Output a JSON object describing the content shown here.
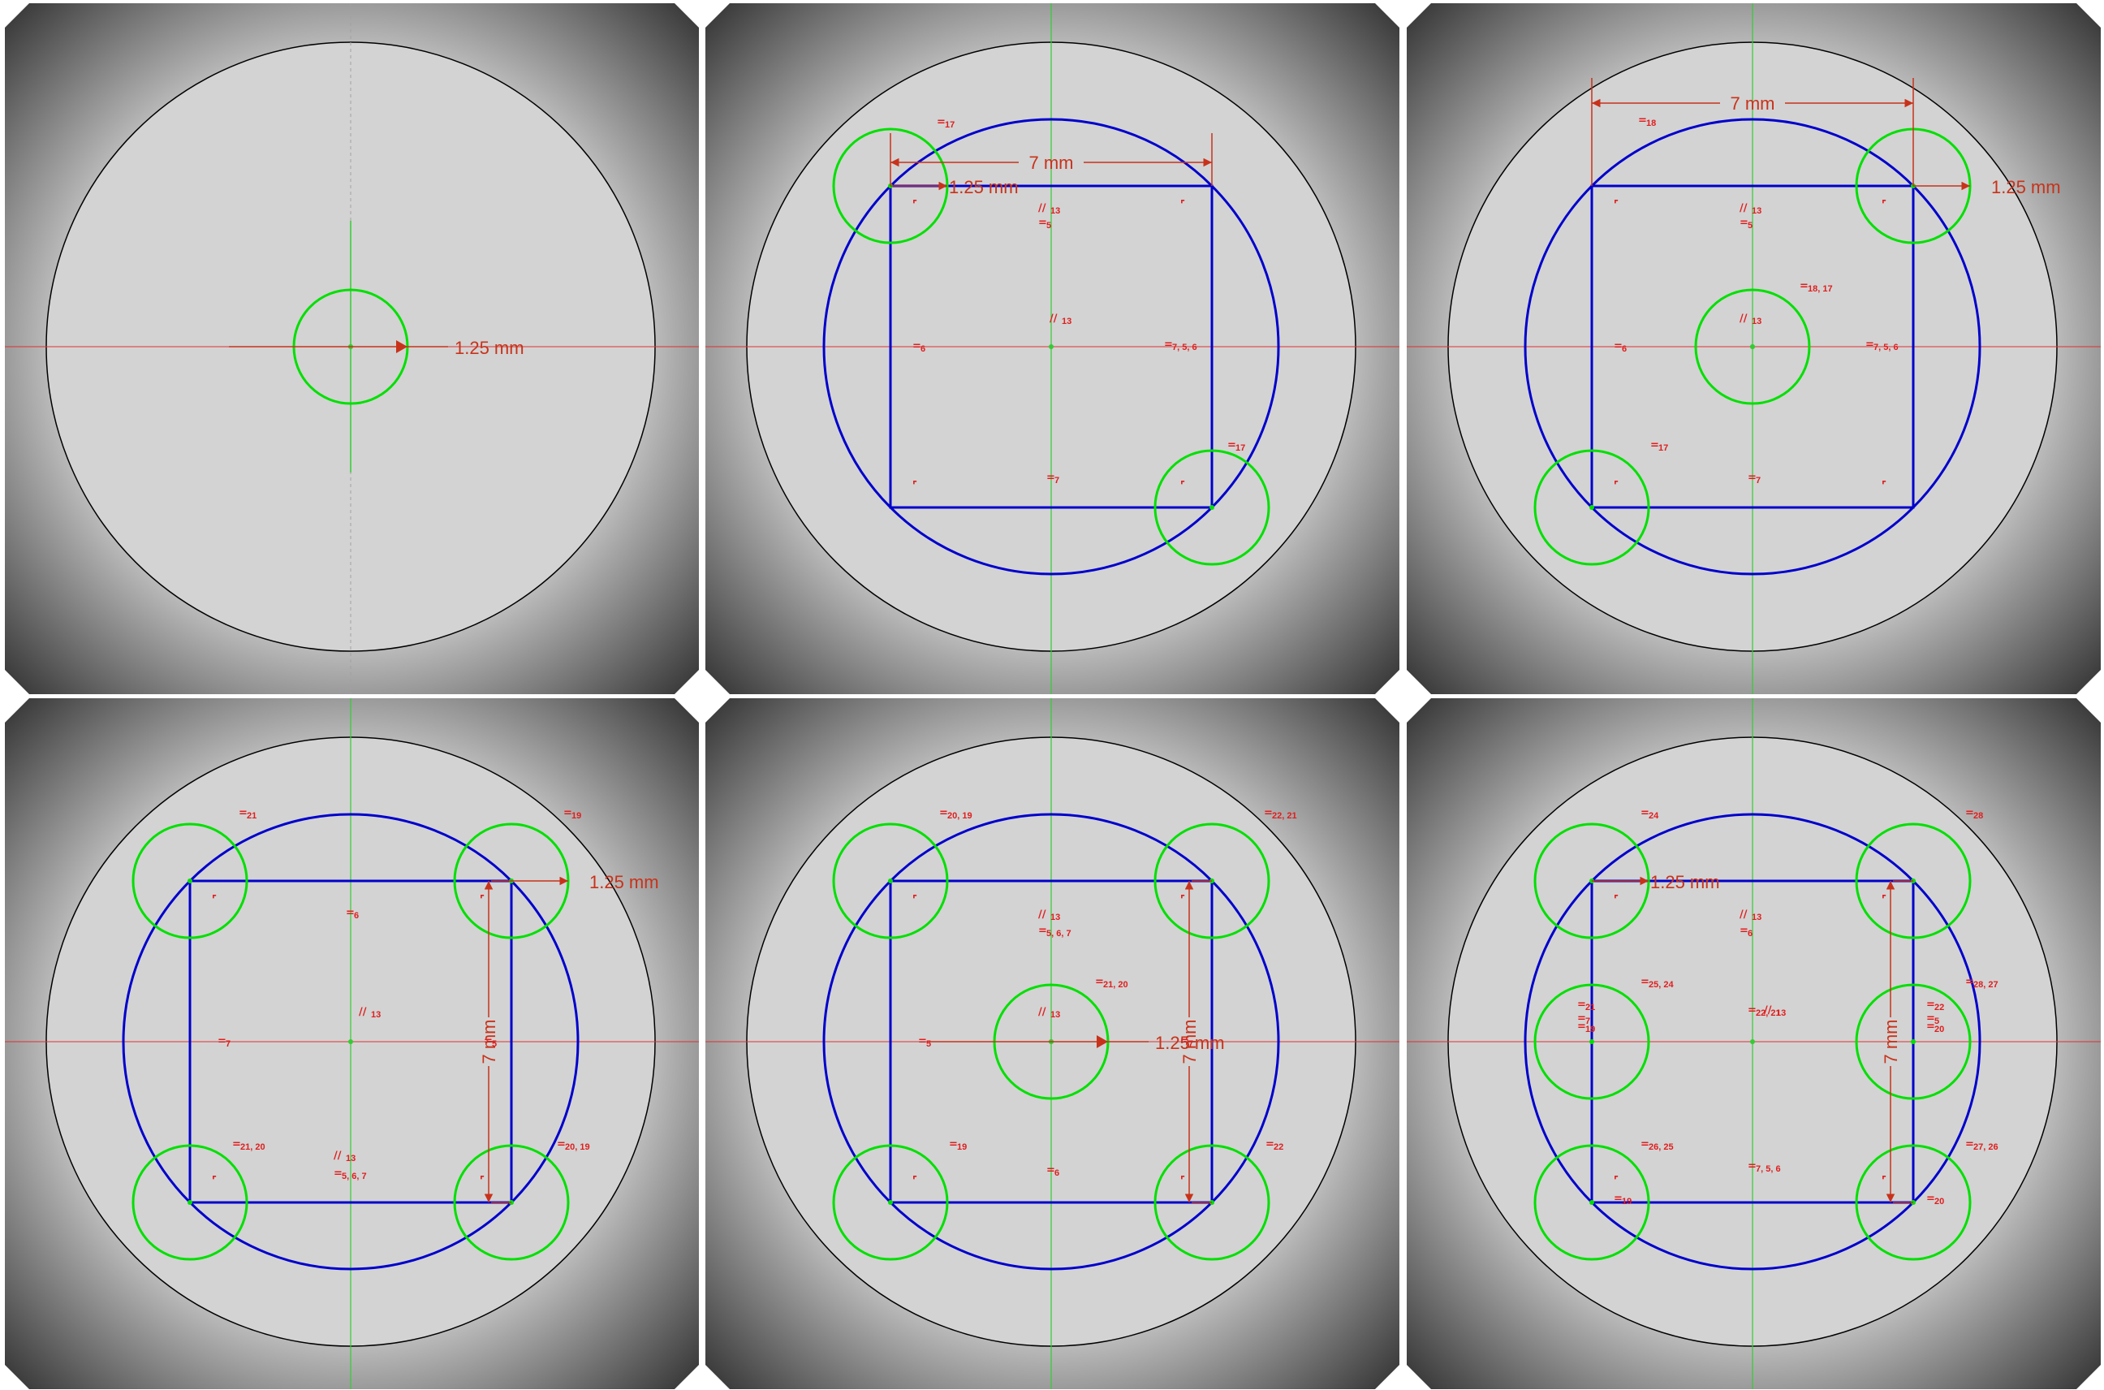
{
  "colors": {
    "background_edge": "#2a2a2a",
    "background_center": "#d9d9d9",
    "plate_fill": "#d3d3d3",
    "outline": "#000000",
    "blue_geometry": "#0000cc",
    "green_geometry": "#00e000",
    "axis_vertical": "#33cc33",
    "axis_horizontal": "#e03030",
    "constraint": "#e01e1e",
    "dimension": "#c8321a"
  },
  "icons": {
    "equal": "equal-constraint-icon",
    "parallel": "parallel-constraint-icon",
    "perpendicular": "perpendicular-constraint-icon",
    "arrow": "dimension-arrow-icon"
  },
  "panels": [
    {
      "blue": false,
      "rect": false,
      "center_circle": true,
      "corner_circles": [],
      "side_circles": false,
      "dims": [
        {
          "t": "h",
          "v": "1.25 mm"
        }
      ],
      "tags": []
    },
    {
      "blue": true,
      "rect": true,
      "center_circle": false,
      "corner_circles": [
        "tl",
        "br"
      ],
      "side_circles": false,
      "dims": [
        {
          "t": "tw",
          "v": "7 mm"
        },
        {
          "t": "rtl",
          "v": "1.25 mm"
        }
      ],
      "tags": [
        {
          "k": "eq",
          "t": "17"
        },
        {
          "k": "par",
          "t": "13"
        },
        {
          "k": "eq",
          "t": "5"
        },
        {
          "k": "par",
          "t": "13"
        },
        {
          "k": "eq",
          "t": "6"
        },
        {
          "k": "eq",
          "t": "7, 5, 6"
        },
        {
          "k": "eq",
          "t": "17"
        },
        {
          "k": "eq",
          "t": "7"
        },
        {
          "k": "per",
          "t": ""
        },
        {
          "k": "per",
          "t": ""
        },
        {
          "k": "per",
          "t": ""
        },
        {
          "k": "per",
          "t": ""
        }
      ]
    },
    {
      "blue": true,
      "rect": true,
      "center_circle": true,
      "corner_circles": [
        "tr",
        "bl"
      ],
      "side_circles": false,
      "dims": [
        {
          "t": "tw",
          "v": "7 mm"
        },
        {
          "t": "rtr",
          "v": "1.25 mm"
        }
      ],
      "tags": [
        {
          "k": "eq",
          "t": "18"
        },
        {
          "k": "par",
          "t": "13"
        },
        {
          "k": "eq",
          "t": "5"
        },
        {
          "k": "eq",
          "t": "18, 17"
        },
        {
          "k": "par",
          "t": "13"
        },
        {
          "k": "eq",
          "t": "6"
        },
        {
          "k": "eq",
          "t": "7, 5, 6"
        },
        {
          "k": "eq",
          "t": "17"
        },
        {
          "k": "eq",
          "t": "7"
        },
        {
          "k": "per",
          "t": ""
        },
        {
          "k": "per",
          "t": ""
        },
        {
          "k": "per",
          "t": ""
        },
        {
          "k": "per",
          "t": ""
        }
      ]
    },
    {
      "blue": true,
      "rect": true,
      "center_circle": false,
      "corner_circles": [
        "tl",
        "tr",
        "bl",
        "br"
      ],
      "side_circles": false,
      "dims": [
        {
          "t": "vh",
          "v": "7 mm"
        },
        {
          "t": "rtr",
          "v": "1.25 mm"
        }
      ],
      "tags": [
        {
          "k": "eq",
          "t": "21"
        },
        {
          "k": "eq",
          "t": "19"
        },
        {
          "k": "eq",
          "t": "6"
        },
        {
          "k": "par",
          "t": "13"
        },
        {
          "k": "eq",
          "t": "7"
        },
        {
          "k": "eq",
          "t": "5"
        },
        {
          "k": "eq",
          "t": "21, 20"
        },
        {
          "k": "par",
          "t": "13"
        },
        {
          "k": "eq",
          "t": "5, 6, 7"
        },
        {
          "k": "eq",
          "t": "20, 19"
        },
        {
          "k": "per",
          "t": ""
        },
        {
          "k": "per",
          "t": ""
        },
        {
          "k": "per",
          "t": ""
        },
        {
          "k": "per",
          "t": ""
        }
      ]
    },
    {
      "blue": true,
      "rect": true,
      "center_circle": true,
      "corner_circles": [
        "tl",
        "tr",
        "bl",
        "br"
      ],
      "side_circles": false,
      "dims": [
        {
          "t": "vh",
          "v": "7 mm"
        },
        {
          "t": "h",
          "v": "1.25 mm"
        }
      ],
      "tags": [
        {
          "k": "eq",
          "t": "20, 19"
        },
        {
          "k": "eq",
          "t": "22, 21"
        },
        {
          "k": "par",
          "t": "13"
        },
        {
          "k": "eq",
          "t": "5, 6, 7"
        },
        {
          "k": "eq",
          "t": "21, 20"
        },
        {
          "k": "par",
          "t": "13"
        },
        {
          "k": "eq",
          "t": "5"
        },
        {
          "k": "eq",
          "t": "7"
        },
        {
          "k": "eq",
          "t": "19"
        },
        {
          "k": "eq",
          "t": "6"
        },
        {
          "k": "eq",
          "t": "22"
        },
        {
          "k": "per",
          "t": ""
        },
        {
          "k": "per",
          "t": ""
        },
        {
          "k": "per",
          "t": ""
        },
        {
          "k": "per",
          "t": ""
        }
      ]
    },
    {
      "blue": true,
      "rect": true,
      "center_circle": false,
      "corner_circles": [
        "tl",
        "tr",
        "bl",
        "br"
      ],
      "side_circles": true,
      "dims": [
        {
          "t": "vh",
          "v": "7 mm"
        },
        {
          "t": "rtl",
          "v": "1.25 mm"
        }
      ],
      "tags": [
        {
          "k": "eq",
          "t": "24"
        },
        {
          "k": "eq",
          "t": "28"
        },
        {
          "k": "par",
          "t": "13"
        },
        {
          "k": "eq",
          "t": "6"
        },
        {
          "k": "eq",
          "t": "25, 24"
        },
        {
          "k": "eq",
          "t": "28, 27"
        },
        {
          "k": "eq",
          "t": "21"
        },
        {
          "k": "eq",
          "t": "7"
        },
        {
          "k": "eq",
          "t": "19"
        },
        {
          "k": "eq",
          "t": "22, 21"
        },
        {
          "k": "par",
          "t": "13"
        },
        {
          "k": "eq",
          "t": "22"
        },
        {
          "k": "eq",
          "t": "5"
        },
        {
          "k": "eq",
          "t": "20"
        },
        {
          "k": "eq",
          "t": "26, 25"
        },
        {
          "k": "eq",
          "t": "7, 5, 6"
        },
        {
          "k": "eq",
          "t": "27, 26"
        },
        {
          "k": "eq",
          "t": "19"
        },
        {
          "k": "eq",
          "t": "20"
        },
        {
          "k": "per",
          "t": ""
        },
        {
          "k": "per",
          "t": ""
        },
        {
          "k": "per",
          "t": ""
        },
        {
          "k": "per",
          "t": ""
        }
      ]
    }
  ]
}
